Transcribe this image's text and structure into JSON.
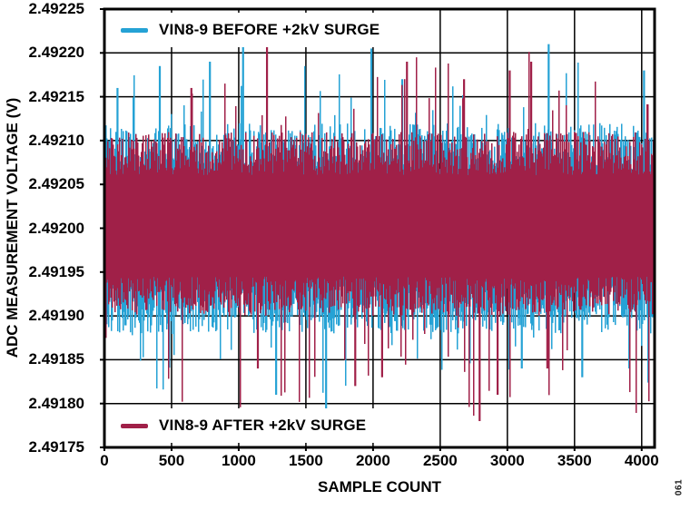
{
  "figure": {
    "figure_number": "061"
  },
  "chart_data": {
    "type": "line",
    "title": "",
    "xlabel": "SAMPLE COUNT",
    "ylabel": "ADC MEASUREMENT VOLTAGE (V)",
    "xlim": [
      0,
      4096
    ],
    "ylim": [
      2.49175,
      2.49225
    ],
    "x_ticks": [
      0,
      500,
      1000,
      1500,
      2000,
      2500,
      3000,
      3500,
      4000
    ],
    "y_ticks": [
      "2.49225",
      "2.49220",
      "2.49215",
      "2.49210",
      "2.49205",
      "2.49200",
      "2.49195",
      "2.49190",
      "2.49185",
      "2.49180",
      "2.49175"
    ],
    "grid": true,
    "grid_color": "#000000",
    "legend_positions": [
      "top-left-inside",
      "bottom-left-inside"
    ],
    "series": [
      {
        "name": "VIN8-9 BEFORE +2kV SURGE",
        "color": "#25A2D5",
        "samples": 4096,
        "mean": 2.492,
        "typical_band": [
          2.49188,
          2.49212
        ],
        "min": 2.49179,
        "max": 2.49221,
        "notable_points": [
          {
            "x": 90,
            "y": 2.49216
          },
          {
            "x": 405,
            "y": 2.492185
          },
          {
            "x": 778,
            "y": 2.49219
          },
          {
            "x": 1025,
            "y": 2.49221
          },
          {
            "x": 1980,
            "y": 2.492205
          },
          {
            "x": 2210,
            "y": 2.49217
          },
          {
            "x": 3300,
            "y": 2.49221
          },
          {
            "x": 4010,
            "y": 2.49218
          },
          {
            "x": 1271,
            "y": 2.49181
          },
          {
            "x": 1643,
            "y": 2.49179
          },
          {
            "x": 3100,
            "y": 2.49184
          },
          {
            "x": 3550,
            "y": 2.49183
          },
          {
            "x": 3900,
            "y": 2.49184
          }
        ]
      },
      {
        "name": "VIN8-9 AFTER +2kV SURGE",
        "color": "#A02048",
        "samples": 4096,
        "mean": 2.492,
        "typical_band": [
          2.4919,
          2.49211
        ],
        "min": 2.49178,
        "max": 2.49222,
        "notable_points": [
          {
            "x": 640,
            "y": 2.49216
          },
          {
            "x": 1203,
            "y": 2.49222
          },
          {
            "x": 2245,
            "y": 2.49219
          },
          {
            "x": 2670,
            "y": 2.49217
          },
          {
            "x": 3010,
            "y": 2.49218
          },
          {
            "x": 3170,
            "y": 2.49219
          },
          {
            "x": 1135,
            "y": 2.49184
          },
          {
            "x": 1860,
            "y": 2.49182
          },
          {
            "x": 2060,
            "y": 2.49183
          },
          {
            "x": 2786,
            "y": 2.49178
          },
          {
            "x": 2920,
            "y": 2.49181
          },
          {
            "x": 3290,
            "y": 2.49184
          }
        ]
      }
    ]
  }
}
